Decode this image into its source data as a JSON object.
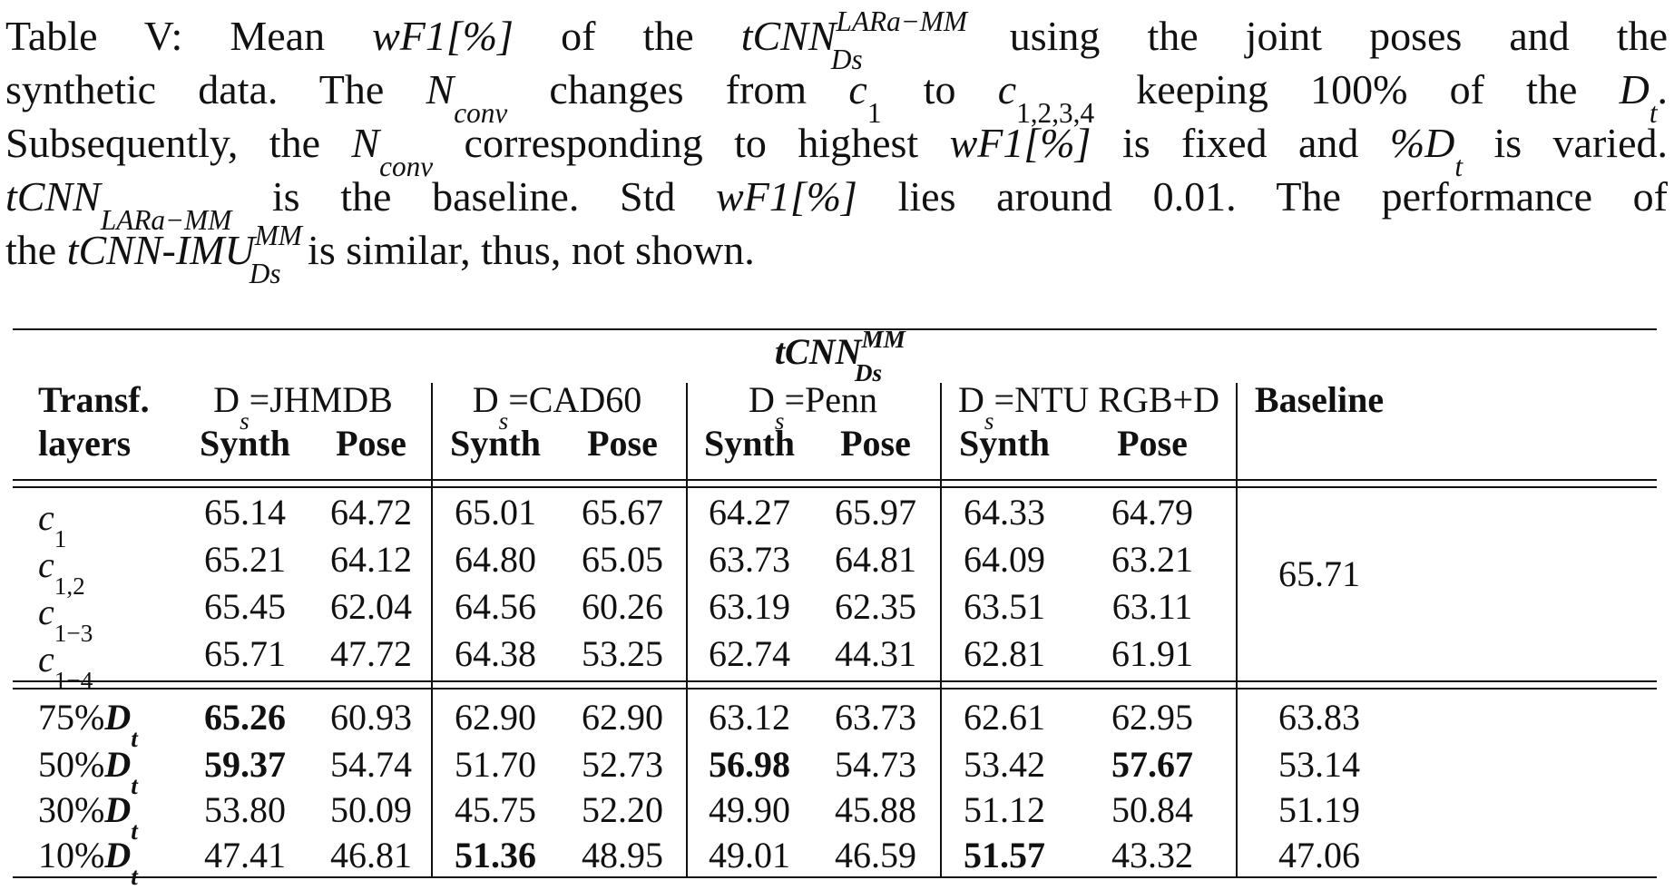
{
  "caption": {
    "l1_a": "Table V: Mean ",
    "l1_metric": "wF1[%]",
    "l1_b": " of the ",
    "l1_model": "tCNN",
    "l1_model_sup": "LARa−MM",
    "l1_model_sub": "Ds",
    "l1_c": " using the joint poses and the",
    "l2_a": "synthetic data. The ",
    "l2_nconv": "N",
    "l2_nconv_sub": "conv",
    "l2_b": " changes from ",
    "l2_c1": "c",
    "l2_c1_sub": "1",
    "l2_c": " to ",
    "l2_c1234": "c",
    "l2_c1234_sub": "1,2,3,4",
    "l2_d": " keeping 100% of the ",
    "l2_dt": "D",
    "l2_dt_sub": "t",
    "l2_e": ".",
    "l3_a": "Subsequently, the ",
    "l3_nconv": "N",
    "l3_nconv_sub": "conv",
    "l3_b": " corresponding to highest ",
    "l3_metric": "wF1[%]",
    "l3_c": " is fixed and ",
    "l3_dt": "%D",
    "l3_dt_sub": "t",
    "l3_d": " is varied.",
    "l4_model": "tCNN",
    "l4_model_sub": "LARa−MM",
    "l4_a": " is the baseline. Std ",
    "l4_metric": "wF1[%]",
    "l4_b": " lies around 0.01. The performance of",
    "l5_a": "the ",
    "l5_model": "tCNN-IMU",
    "l5_model_sup": "MM",
    "l5_model_sub": "Ds",
    "l5_b": " is similar, thus, not shown."
  },
  "table": {
    "title": "tCNN",
    "title_sup": "MM",
    "title_sub": "Ds",
    "row_header_1": "Transf.",
    "row_header_2": "layers",
    "groups": [
      {
        "prefix": "D",
        "sub": "s",
        "name": "=JHMDB"
      },
      {
        "prefix": "D",
        "sub": "s",
        "name": "=CAD60"
      },
      {
        "prefix": "D",
        "sub": "s",
        "name": "=Penn"
      },
      {
        "prefix": "D",
        "sub": "s",
        "name": "=NTU RGB+D"
      }
    ],
    "baseline_header": "Baseline",
    "synth_label": "Synth",
    "pose_label": "Pose",
    "section1": {
      "rows": [
        {
          "label": "c",
          "label_sub": "1",
          "values": [
            "65.14",
            "64.72",
            "65.01",
            "65.67",
            "64.27",
            "65.97",
            "64.33",
            "64.79"
          ]
        },
        {
          "label": "c",
          "label_sub": "1,2",
          "values": [
            "65.21",
            "64.12",
            "64.80",
            "65.05",
            "63.73",
            "64.81",
            "64.09",
            "63.21"
          ]
        },
        {
          "label": "c",
          "label_sub": "1−3",
          "values": [
            "65.45",
            "62.04",
            "64.56",
            "60.26",
            "63.19",
            "62.35",
            "63.51",
            "63.11"
          ]
        },
        {
          "label": "c",
          "label_sub": "1−4",
          "values": [
            "65.71",
            "47.72",
            "64.38",
            "53.25",
            "62.74",
            "44.31",
            "62.81",
            "61.91"
          ]
        }
      ],
      "baseline": "65.71"
    },
    "section2": {
      "rows": [
        {
          "label": "75%",
          "label_dt": "D",
          "label_dt_sub": "t",
          "values": [
            "65.26",
            "60.93",
            "62.90",
            "62.90",
            "63.12",
            "63.73",
            "62.61",
            "62.95"
          ],
          "bold": [
            0
          ],
          "baseline": "63.83"
        },
        {
          "label": "50%",
          "label_dt": "D",
          "label_dt_sub": "t",
          "values": [
            "59.37",
            "54.74",
            "51.70",
            "52.73",
            "56.98",
            "54.73",
            "53.42",
            "57.67"
          ],
          "bold": [
            0,
            4,
            7
          ],
          "baseline": "53.14"
        },
        {
          "label": "30%",
          "label_dt": "D",
          "label_dt_sub": "t",
          "values": [
            "53.80",
            "50.09",
            "45.75",
            "52.20",
            "49.90",
            "45.88",
            "51.12",
            "50.84"
          ],
          "bold": [],
          "baseline": "51.19"
        },
        {
          "label": "10%",
          "label_dt": "D",
          "label_dt_sub": "t",
          "values": [
            "47.41",
            "46.81",
            "51.36",
            "48.95",
            "49.01",
            "46.59",
            "51.57",
            "43.32"
          ],
          "bold": [
            2,
            6
          ],
          "baseline": "47.06"
        }
      ]
    }
  }
}
